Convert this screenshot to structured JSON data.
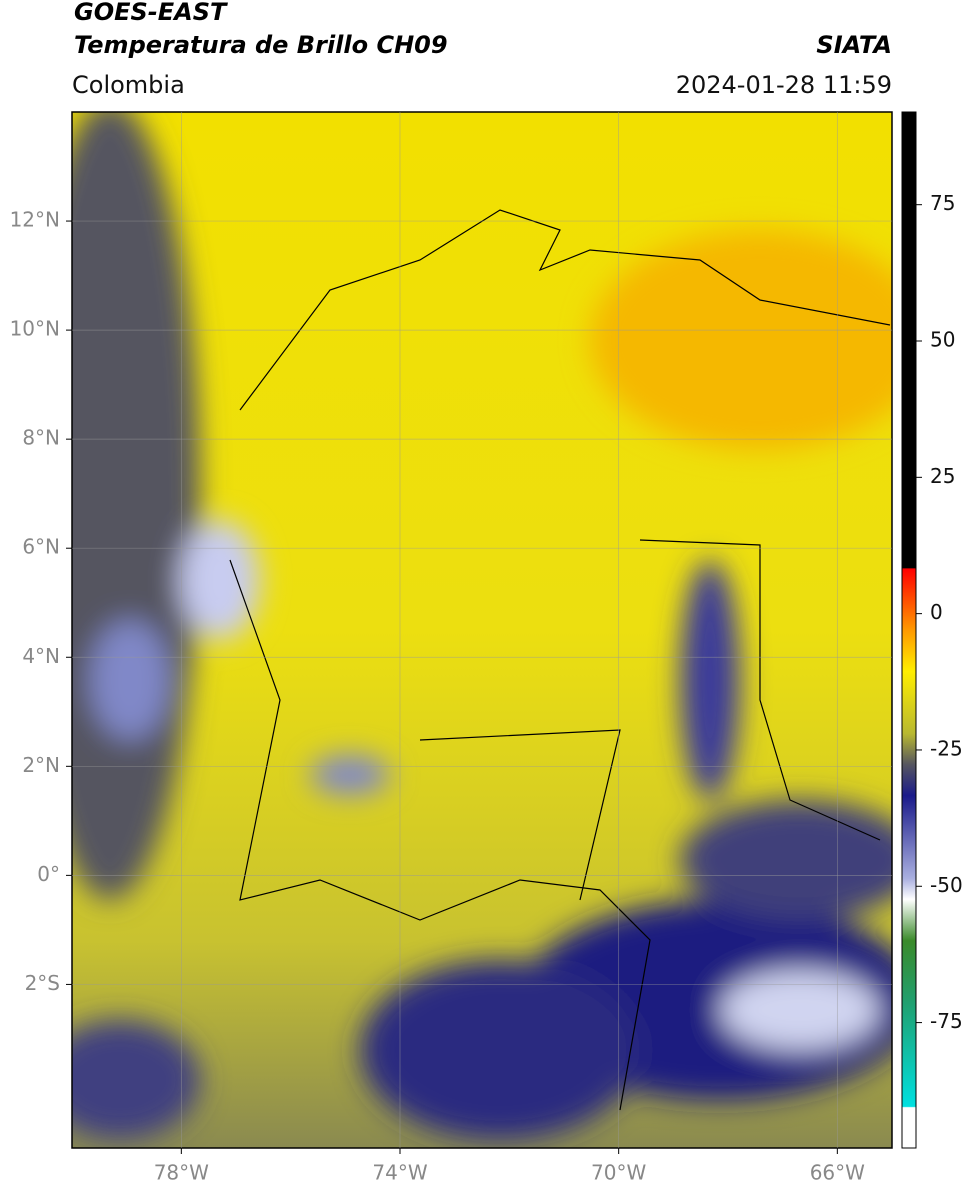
{
  "header": {
    "title": "GOES-EAST",
    "subtitle": "Temperatura de Brillo CH09",
    "region": "Colombia",
    "source": "SIATA",
    "datetime": "2024-01-28 11:59"
  },
  "map": {
    "lat_range": [
      -5,
      14
    ],
    "lon_range": [
      -80,
      -65
    ],
    "lat_ticks": [
      {
        "value": 12,
        "label": "12°N"
      },
      {
        "value": 10,
        "label": "10°N"
      },
      {
        "value": 8,
        "label": "8°N"
      },
      {
        "value": 6,
        "label": "6°N"
      },
      {
        "value": 4,
        "label": "4°N"
      },
      {
        "value": 2,
        "label": "2°N"
      },
      {
        "value": 0,
        "label": "0°"
      },
      {
        "value": -2,
        "label": "2°S"
      }
    ],
    "lon_ticks": [
      {
        "value": -78,
        "label": "78°W"
      },
      {
        "value": -74,
        "label": "74°W"
      },
      {
        "value": -70,
        "label": "70°W"
      },
      {
        "value": -66,
        "label": "66°W"
      }
    ]
  },
  "colorbar": {
    "range": [
      -98,
      92
    ],
    "ticks": [
      75,
      50,
      25,
      0,
      -25,
      -50,
      -75
    ]
  }
}
